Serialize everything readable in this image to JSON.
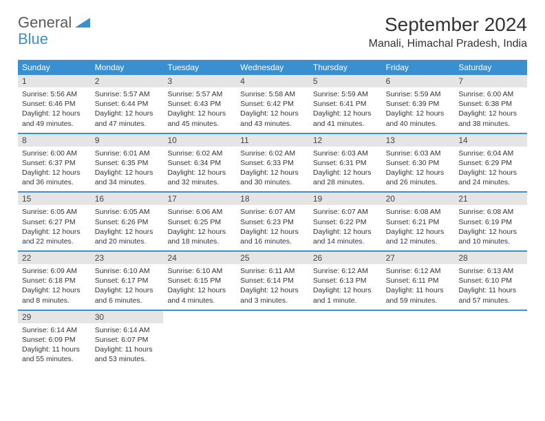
{
  "logo": {
    "part1": "General",
    "part2": "Blue"
  },
  "title": "September 2024",
  "location": "Manali, Himachal Pradesh, India",
  "colors": {
    "primary": "#3a8fd0",
    "dayHeaderBg": "#e5e5e5",
    "text": "#333333",
    "logoGray": "#5a5a5a"
  },
  "weekdays": [
    "Sunday",
    "Monday",
    "Tuesday",
    "Wednesday",
    "Thursday",
    "Friday",
    "Saturday"
  ],
  "weeks": [
    [
      {
        "day": 1,
        "sunrise": "5:56 AM",
        "sunset": "6:46 PM",
        "daylight": "12 hours and 49 minutes."
      },
      {
        "day": 2,
        "sunrise": "5:57 AM",
        "sunset": "6:44 PM",
        "daylight": "12 hours and 47 minutes."
      },
      {
        "day": 3,
        "sunrise": "5:57 AM",
        "sunset": "6:43 PM",
        "daylight": "12 hours and 45 minutes."
      },
      {
        "day": 4,
        "sunrise": "5:58 AM",
        "sunset": "6:42 PM",
        "daylight": "12 hours and 43 minutes."
      },
      {
        "day": 5,
        "sunrise": "5:59 AM",
        "sunset": "6:41 PM",
        "daylight": "12 hours and 41 minutes."
      },
      {
        "day": 6,
        "sunrise": "5:59 AM",
        "sunset": "6:39 PM",
        "daylight": "12 hours and 40 minutes."
      },
      {
        "day": 7,
        "sunrise": "6:00 AM",
        "sunset": "6:38 PM",
        "daylight": "12 hours and 38 minutes."
      }
    ],
    [
      {
        "day": 8,
        "sunrise": "6:00 AM",
        "sunset": "6:37 PM",
        "daylight": "12 hours and 36 minutes."
      },
      {
        "day": 9,
        "sunrise": "6:01 AM",
        "sunset": "6:35 PM",
        "daylight": "12 hours and 34 minutes."
      },
      {
        "day": 10,
        "sunrise": "6:02 AM",
        "sunset": "6:34 PM",
        "daylight": "12 hours and 32 minutes."
      },
      {
        "day": 11,
        "sunrise": "6:02 AM",
        "sunset": "6:33 PM",
        "daylight": "12 hours and 30 minutes."
      },
      {
        "day": 12,
        "sunrise": "6:03 AM",
        "sunset": "6:31 PM",
        "daylight": "12 hours and 28 minutes."
      },
      {
        "day": 13,
        "sunrise": "6:03 AM",
        "sunset": "6:30 PM",
        "daylight": "12 hours and 26 minutes."
      },
      {
        "day": 14,
        "sunrise": "6:04 AM",
        "sunset": "6:29 PM",
        "daylight": "12 hours and 24 minutes."
      }
    ],
    [
      {
        "day": 15,
        "sunrise": "6:05 AM",
        "sunset": "6:27 PM",
        "daylight": "12 hours and 22 minutes."
      },
      {
        "day": 16,
        "sunrise": "6:05 AM",
        "sunset": "6:26 PM",
        "daylight": "12 hours and 20 minutes."
      },
      {
        "day": 17,
        "sunrise": "6:06 AM",
        "sunset": "6:25 PM",
        "daylight": "12 hours and 18 minutes."
      },
      {
        "day": 18,
        "sunrise": "6:07 AM",
        "sunset": "6:23 PM",
        "daylight": "12 hours and 16 minutes."
      },
      {
        "day": 19,
        "sunrise": "6:07 AM",
        "sunset": "6:22 PM",
        "daylight": "12 hours and 14 minutes."
      },
      {
        "day": 20,
        "sunrise": "6:08 AM",
        "sunset": "6:21 PM",
        "daylight": "12 hours and 12 minutes."
      },
      {
        "day": 21,
        "sunrise": "6:08 AM",
        "sunset": "6:19 PM",
        "daylight": "12 hours and 10 minutes."
      }
    ],
    [
      {
        "day": 22,
        "sunrise": "6:09 AM",
        "sunset": "6:18 PM",
        "daylight": "12 hours and 8 minutes."
      },
      {
        "day": 23,
        "sunrise": "6:10 AM",
        "sunset": "6:17 PM",
        "daylight": "12 hours and 6 minutes."
      },
      {
        "day": 24,
        "sunrise": "6:10 AM",
        "sunset": "6:15 PM",
        "daylight": "12 hours and 4 minutes."
      },
      {
        "day": 25,
        "sunrise": "6:11 AM",
        "sunset": "6:14 PM",
        "daylight": "12 hours and 3 minutes."
      },
      {
        "day": 26,
        "sunrise": "6:12 AM",
        "sunset": "6:13 PM",
        "daylight": "12 hours and 1 minute."
      },
      {
        "day": 27,
        "sunrise": "6:12 AM",
        "sunset": "6:11 PM",
        "daylight": "11 hours and 59 minutes."
      },
      {
        "day": 28,
        "sunrise": "6:13 AM",
        "sunset": "6:10 PM",
        "daylight": "11 hours and 57 minutes."
      }
    ],
    [
      {
        "day": 29,
        "sunrise": "6:14 AM",
        "sunset": "6:09 PM",
        "daylight": "11 hours and 55 minutes."
      },
      {
        "day": 30,
        "sunrise": "6:14 AM",
        "sunset": "6:07 PM",
        "daylight": "11 hours and 53 minutes."
      },
      null,
      null,
      null,
      null,
      null
    ]
  ],
  "labels": {
    "sunrise": "Sunrise:",
    "sunset": "Sunset:",
    "daylight": "Daylight:"
  }
}
